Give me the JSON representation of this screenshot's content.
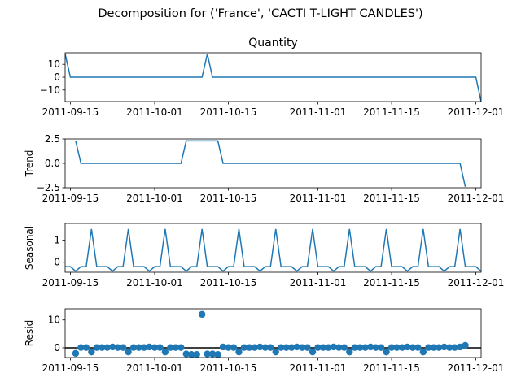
{
  "figure": {
    "suptitle": "Decomposition for ('France', 'CACTI T-LIGHT CANDLES')",
    "line_color": "#1f77b4",
    "axis_color": "#000000"
  },
  "chart_data": [
    {
      "type": "line",
      "title": "Quantity",
      "ylabel": "",
      "xlim": [
        "2011-09-14",
        "2011-12-02"
      ],
      "ylim": [
        -19,
        19
      ],
      "yticks": [
        10,
        0,
        -10
      ],
      "ytick_labels": [
        "10",
        "0",
        "−10"
      ],
      "xticks": [
        "2011-09-15",
        "2011-10-01",
        "2011-10-15",
        "2011-11-01",
        "2011-11-15",
        "2011-12-01"
      ],
      "series": [
        {
          "points": [
            [
              "2011-09-14",
              18
            ],
            [
              "2011-09-15",
              0
            ],
            [
              "2011-10-10",
              0
            ],
            [
              "2011-10-11",
              18
            ],
            [
              "2011-10-12",
              0
            ],
            [
              "2011-12-01",
              0
            ],
            [
              "2011-12-02",
              -19
            ]
          ]
        }
      ]
    },
    {
      "type": "line",
      "title": "",
      "ylabel": "Trend",
      "xlim": [
        "2011-09-14",
        "2011-12-02"
      ],
      "ylim": [
        -2.5,
        2.5
      ],
      "yticks": [
        2.5,
        0.0,
        -2.5
      ],
      "ytick_labels": [
        "2.5",
        "0.0",
        "−2.5"
      ],
      "xticks": [
        "2011-09-15",
        "2011-10-01",
        "2011-10-15",
        "2011-11-01",
        "2011-11-15",
        "2011-12-01"
      ],
      "series": [
        {
          "points": [
            [
              "2011-09-16",
              2.3
            ],
            [
              "2011-09-17",
              0
            ],
            [
              "2011-10-06",
              0
            ],
            [
              "2011-10-07",
              2.3
            ],
            [
              "2011-10-13",
              2.3
            ],
            [
              "2011-10-14",
              0
            ],
            [
              "2011-11-28",
              0
            ],
            [
              "2011-11-29",
              -2.4
            ]
          ]
        }
      ]
    },
    {
      "type": "line",
      "title": "",
      "ylabel": "Seasonal",
      "xlim": [
        "2011-09-14",
        "2011-12-02"
      ],
      "ylim": [
        -0.45,
        1.75
      ],
      "yticks": [
        1,
        0
      ],
      "ytick_labels": [
        "1",
        "0"
      ],
      "xticks": [
        "2011-09-15",
        "2011-10-01",
        "2011-10-15",
        "2011-11-01",
        "2011-11-15",
        "2011-12-01"
      ],
      "seasonal": {
        "start": "2011-09-14",
        "end": "2011-12-02",
        "period": 7,
        "pattern": [
          -0.2,
          -0.2,
          -0.4,
          -0.2,
          -0.2,
          1.5,
          -0.2
        ]
      }
    },
    {
      "type": "scatter",
      "title": "",
      "ylabel": "Resid",
      "xlim": [
        "2011-09-14",
        "2011-12-02"
      ],
      "ylim": [
        -3.5,
        14
      ],
      "yticks": [
        10,
        0
      ],
      "ytick_labels": [
        "10",
        "0"
      ],
      "xticks": [
        "2011-09-15",
        "2011-10-01",
        "2011-10-15",
        "2011-11-01",
        "2011-11-15",
        "2011-12-01"
      ],
      "hline": 0,
      "points": [
        [
          "2011-09-16",
          -2.0
        ],
        [
          "2011-09-17",
          0.1
        ],
        [
          "2011-09-18",
          0.1
        ],
        [
          "2011-09-19",
          -1.5
        ],
        [
          "2011-09-20",
          0.1
        ],
        [
          "2011-09-21",
          0.1
        ],
        [
          "2011-09-22",
          0.1
        ],
        [
          "2011-09-23",
          0.3
        ],
        [
          "2011-09-24",
          0.1
        ],
        [
          "2011-09-25",
          0.1
        ],
        [
          "2011-09-26",
          -1.5
        ],
        [
          "2011-09-27",
          0.1
        ],
        [
          "2011-09-28",
          0.1
        ],
        [
          "2011-09-29",
          0.1
        ],
        [
          "2011-09-30",
          0.3
        ],
        [
          "2011-10-01",
          0.1
        ],
        [
          "2011-10-02",
          0.1
        ],
        [
          "2011-10-03",
          -1.5
        ],
        [
          "2011-10-04",
          0.1
        ],
        [
          "2011-10-05",
          0.1
        ],
        [
          "2011-10-06",
          0.1
        ],
        [
          "2011-10-07",
          -2.2
        ],
        [
          "2011-10-08",
          -2.4
        ],
        [
          "2011-10-09",
          -2.4
        ],
        [
          "2011-10-10",
          12.0
        ],
        [
          "2011-10-11",
          -2.2
        ],
        [
          "2011-10-12",
          -2.2
        ],
        [
          "2011-10-13",
          -2.4
        ],
        [
          "2011-10-14",
          0.3
        ],
        [
          "2011-10-15",
          0.1
        ],
        [
          "2011-10-16",
          0.1
        ],
        [
          "2011-10-17",
          -1.5
        ],
        [
          "2011-10-18",
          0.1
        ],
        [
          "2011-10-19",
          0.1
        ],
        [
          "2011-10-20",
          0.1
        ],
        [
          "2011-10-21",
          0.3
        ],
        [
          "2011-10-22",
          0.1
        ],
        [
          "2011-10-23",
          0.1
        ],
        [
          "2011-10-24",
          -1.5
        ],
        [
          "2011-10-25",
          0.1
        ],
        [
          "2011-10-26",
          0.1
        ],
        [
          "2011-10-27",
          0.1
        ],
        [
          "2011-10-28",
          0.3
        ],
        [
          "2011-10-29",
          0.1
        ],
        [
          "2011-10-30",
          0.1
        ],
        [
          "2011-10-31",
          -1.5
        ],
        [
          "2011-11-01",
          0.1
        ],
        [
          "2011-11-02",
          0.1
        ],
        [
          "2011-11-03",
          0.1
        ],
        [
          "2011-11-04",
          0.3
        ],
        [
          "2011-11-05",
          0.1
        ],
        [
          "2011-11-06",
          0.1
        ],
        [
          "2011-11-07",
          -1.5
        ],
        [
          "2011-11-08",
          0.1
        ],
        [
          "2011-11-09",
          0.1
        ],
        [
          "2011-11-10",
          0.1
        ],
        [
          "2011-11-11",
          0.3
        ],
        [
          "2011-11-12",
          0.1
        ],
        [
          "2011-11-13",
          0.1
        ],
        [
          "2011-11-14",
          -1.5
        ],
        [
          "2011-11-15",
          0.1
        ],
        [
          "2011-11-16",
          0.1
        ],
        [
          "2011-11-17",
          0.1
        ],
        [
          "2011-11-18",
          0.3
        ],
        [
          "2011-11-19",
          0.1
        ],
        [
          "2011-11-20",
          0.1
        ],
        [
          "2011-11-21",
          -1.5
        ],
        [
          "2011-11-22",
          0.1
        ],
        [
          "2011-11-23",
          0.1
        ],
        [
          "2011-11-24",
          0.1
        ],
        [
          "2011-11-25",
          0.3
        ],
        [
          "2011-11-26",
          0.1
        ],
        [
          "2011-11-27",
          0.1
        ],
        [
          "2011-11-28",
          0.3
        ],
        [
          "2011-11-29",
          0.9
        ]
      ]
    }
  ]
}
